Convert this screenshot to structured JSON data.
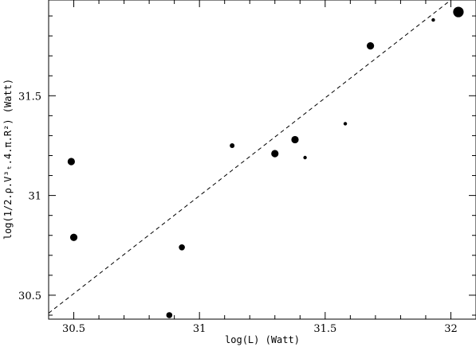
{
  "chart_data": {
    "type": "scatter",
    "title": "",
    "xlabel": "log(L) (Watt)",
    "ylabel": "log(1/2.ρ.V³ₜ.4.π.R²) (Watt)",
    "xlim": [
      30.4,
      32.1
    ],
    "ylim": [
      30.38,
      31.98
    ],
    "xticks": [
      "30.5",
      "31",
      "31.5",
      "32"
    ],
    "yticks": [
      "30.5",
      "31",
      "31.5"
    ],
    "grid": false,
    "legend": "none",
    "points": [
      {
        "x": 30.49,
        "y": 31.17,
        "size": "medium"
      },
      {
        "x": 30.5,
        "y": 30.79,
        "size": "medium"
      },
      {
        "x": 30.88,
        "y": 30.4,
        "size": "small"
      },
      {
        "x": 30.93,
        "y": 30.74,
        "size": "small"
      },
      {
        "x": 31.13,
        "y": 31.25,
        "size": "tiny"
      },
      {
        "x": 31.3,
        "y": 31.21,
        "size": "medium"
      },
      {
        "x": 31.38,
        "y": 31.28,
        "size": "medium"
      },
      {
        "x": 31.42,
        "y": 31.19,
        "size": "dot"
      },
      {
        "x": 31.58,
        "y": 31.36,
        "size": "dot"
      },
      {
        "x": 31.68,
        "y": 31.75,
        "size": "medium"
      },
      {
        "x": 31.93,
        "y": 31.88,
        "size": "dot"
      },
      {
        "x": 32.03,
        "y": 31.92,
        "size": "large"
      }
    ],
    "fit_line": {
      "style": "dashed",
      "x": [
        30.4,
        32.0
      ],
      "y": [
        30.41,
        31.98
      ]
    }
  }
}
